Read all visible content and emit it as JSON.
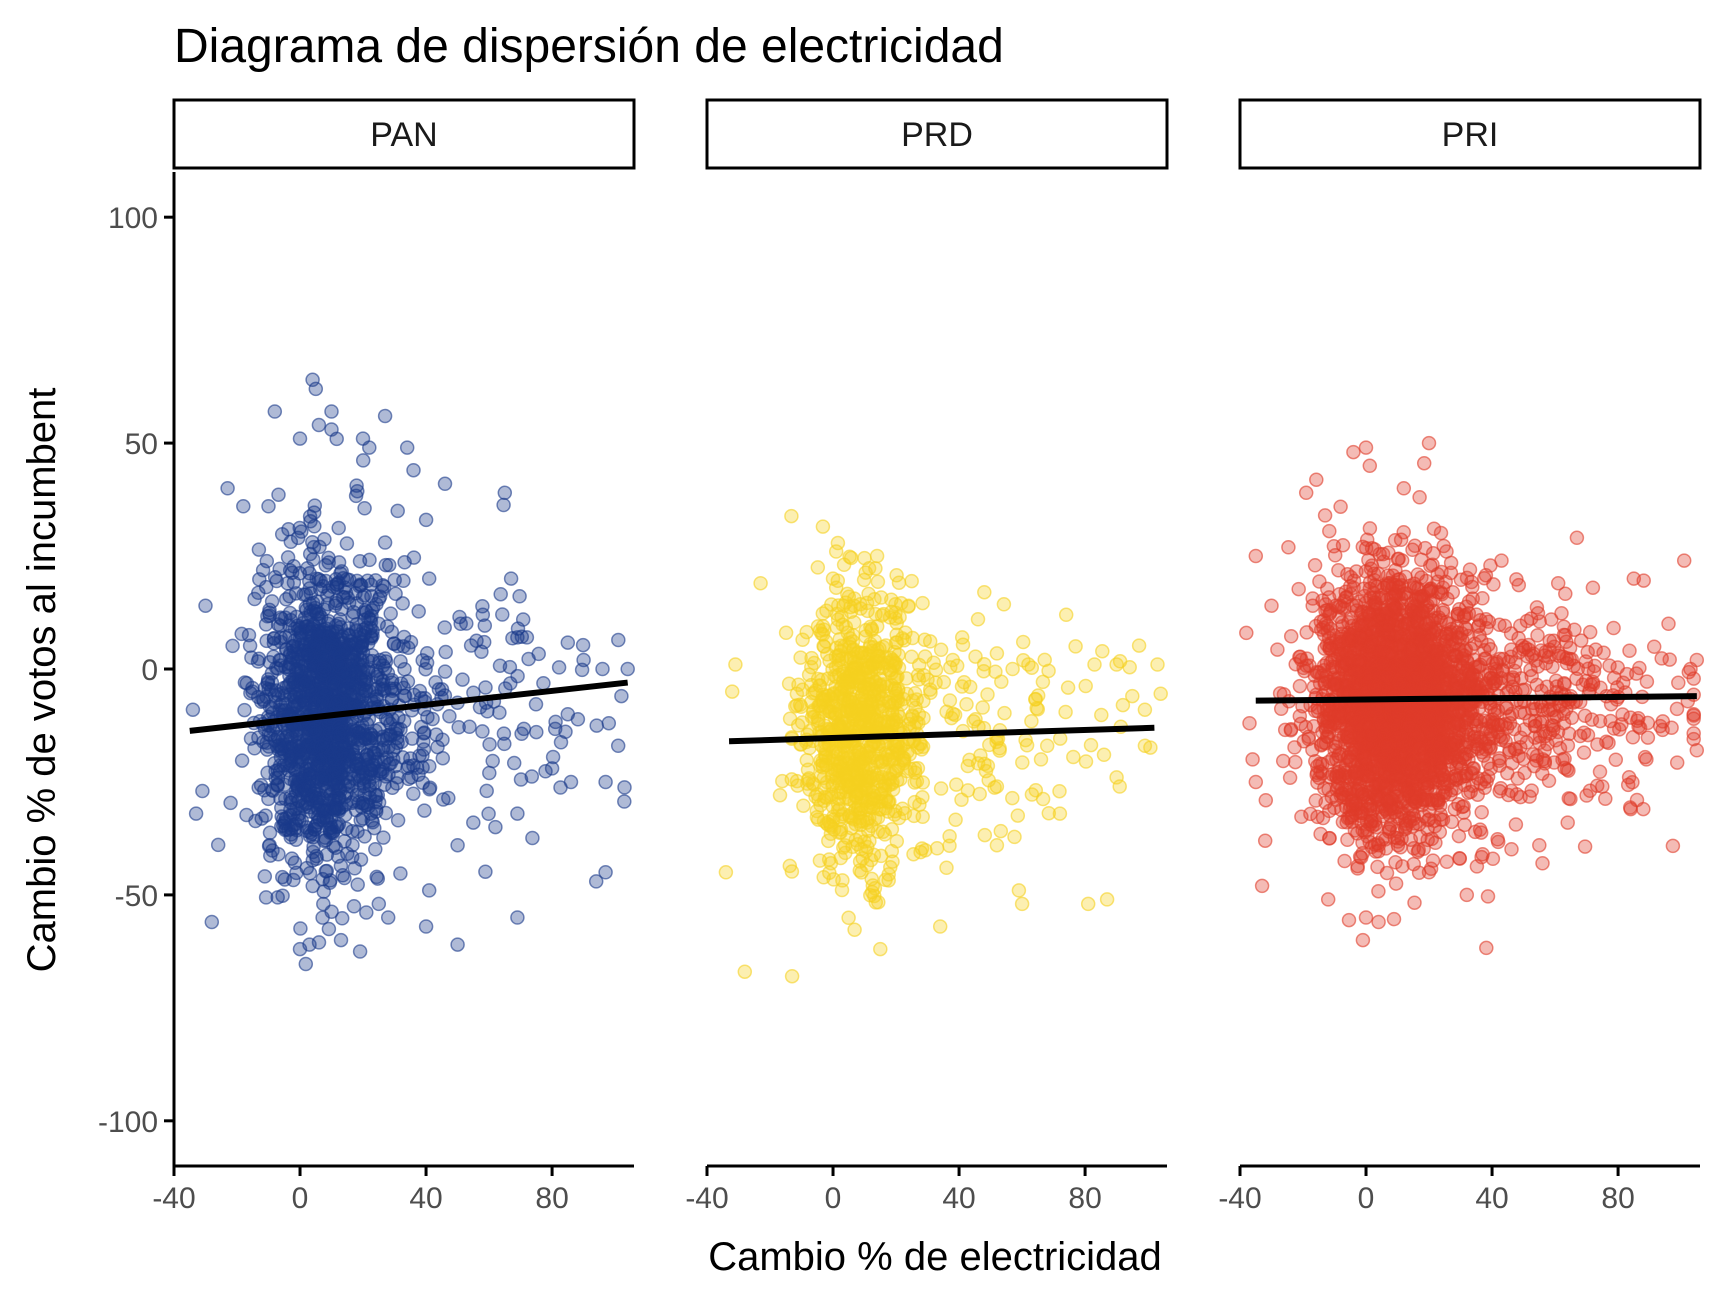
{
  "chart_data": {
    "type": "scatter",
    "title": "Diagrama de dispersión de electricidad",
    "xlabel": "Cambio % de electricidad",
    "ylabel": "Cambio % de votos al incumbent",
    "xlim": [
      -40,
      106
    ],
    "ylim": [
      -110,
      110
    ],
    "x_ticks": [
      -40,
      0,
      40,
      80
    ],
    "y_ticks": [
      100,
      50,
      0,
      -50,
      -100
    ],
    "grid": false,
    "facets": [
      {
        "label": "PAN",
        "color": "#1a3a8a",
        "point_count": 1600,
        "center": {
          "x": 8,
          "y": -10
        },
        "trend": {
          "x": [
            -35,
            104
          ],
          "y": [
            -13.7,
            -3
          ]
        },
        "sample_points": [
          {
            "x": 4,
            "y": 64
          },
          {
            "x": 5,
            "y": 62
          },
          {
            "x": -8,
            "y": 57
          },
          {
            "x": 27,
            "y": 56
          },
          {
            "x": 10,
            "y": 57
          },
          {
            "x": 6,
            "y": 54
          },
          {
            "x": 10,
            "y": 53
          },
          {
            "x": 0,
            "y": 51
          },
          {
            "x": 20,
            "y": 51
          },
          {
            "x": 34,
            "y": 49
          },
          {
            "x": 22,
            "y": 49
          },
          {
            "x": 36,
            "y": 44
          },
          {
            "x": 46,
            "y": 41
          },
          {
            "x": 65,
            "y": 39
          },
          {
            "x": -23,
            "y": 40
          },
          {
            "x": -18,
            "y": 36
          },
          {
            "x": -10,
            "y": 36
          },
          {
            "x": 31,
            "y": 35
          },
          {
            "x": 40,
            "y": 33
          },
          {
            "x": 27,
            "y": 28
          },
          {
            "x": 67,
            "y": 20
          },
          {
            "x": 41,
            "y": 20
          },
          {
            "x": -30,
            "y": 14
          },
          {
            "x": 58,
            "y": 12
          },
          {
            "x": 51,
            "y": 10
          },
          {
            "x": 69,
            "y": 7
          },
          {
            "x": 72,
            "y": 7
          },
          {
            "x": 90,
            "y": 2
          },
          {
            "x": 96,
            "y": 0
          },
          {
            "x": 104,
            "y": 0
          },
          {
            "x": 102,
            "y": -6
          },
          {
            "x": 85,
            "y": -10
          },
          {
            "x": 98,
            "y": -12
          },
          {
            "x": 101,
            "y": -17
          },
          {
            "x": 80,
            "y": -22
          },
          {
            "x": 86,
            "y": -25
          },
          {
            "x": 97,
            "y": -25
          },
          {
            "x": 62,
            "y": -35
          },
          {
            "x": 69,
            "y": -32
          },
          {
            "x": 55,
            "y": -34
          },
          {
            "x": 50,
            "y": -39
          },
          {
            "x": 41,
            "y": -49
          },
          {
            "x": 40,
            "y": -57
          },
          {
            "x": 69,
            "y": -55
          },
          {
            "x": 94,
            "y": -47
          },
          {
            "x": 97,
            "y": -45
          },
          {
            "x": 50,
            "y": -61
          },
          {
            "x": -28,
            "y": -56
          },
          {
            "x": -33,
            "y": -32
          },
          {
            "x": -34,
            "y": -9
          },
          {
            "x": -31,
            "y": -27
          },
          {
            "x": 3,
            "y": -61
          },
          {
            "x": 0,
            "y": -62
          },
          {
            "x": 13,
            "y": -60
          },
          {
            "x": 25,
            "y": -52
          },
          {
            "x": 28,
            "y": -55
          }
        ]
      },
      {
        "label": "PRD",
        "color": "#f5d020",
        "point_count": 1000,
        "center": {
          "x": 8,
          "y": -14
        },
        "trend": {
          "x": [
            -33,
            102
          ],
          "y": [
            -16,
            -13
          ]
        },
        "sample_points": [
          {
            "x": 1,
            "y": 26
          },
          {
            "x": 14,
            "y": 25
          },
          {
            "x": 0,
            "y": 20
          },
          {
            "x": 1,
            "y": 18
          },
          {
            "x": -23,
            "y": 19
          },
          {
            "x": 5,
            "y": 16
          },
          {
            "x": 24,
            "y": 14
          },
          {
            "x": 48,
            "y": 17
          },
          {
            "x": 46,
            "y": 11
          },
          {
            "x": 74,
            "y": 12
          },
          {
            "x": 41,
            "y": 7
          },
          {
            "x": 77,
            "y": 5
          },
          {
            "x": 38,
            "y": 2
          },
          {
            "x": 83,
            "y": 1
          },
          {
            "x": 90,
            "y": 1
          },
          {
            "x": 103,
            "y": 1
          },
          {
            "x": 57,
            "y": 0
          },
          {
            "x": 62,
            "y": 1
          },
          {
            "x": 95,
            "y": -6
          },
          {
            "x": 99,
            "y": -9
          },
          {
            "x": 92,
            "y": -8
          },
          {
            "x": 90,
            "y": -24
          },
          {
            "x": 91,
            "y": -26
          },
          {
            "x": 99,
            "y": -17
          },
          {
            "x": 86,
            "y": -19
          },
          {
            "x": 66,
            "y": -20
          },
          {
            "x": 72,
            "y": -32
          },
          {
            "x": 52,
            "y": -39
          },
          {
            "x": 59,
            "y": -49
          },
          {
            "x": 60,
            "y": -52
          },
          {
            "x": 81,
            "y": -52
          },
          {
            "x": 87,
            "y": -51
          },
          {
            "x": 34,
            "y": -57
          },
          {
            "x": 15,
            "y": -62
          },
          {
            "x": -28,
            "y": -67
          },
          {
            "x": -13,
            "y": -68
          },
          {
            "x": -34,
            "y": -45
          },
          {
            "x": -32,
            "y": -5
          },
          {
            "x": -31,
            "y": 1
          },
          {
            "x": 36,
            "y": -44
          },
          {
            "x": 37,
            "y": -37
          },
          {
            "x": 52,
            "y": -26
          }
        ]
      },
      {
        "label": "PRI",
        "color": "#e03c2a",
        "point_count": 3000,
        "center": {
          "x": 8,
          "y": -8
        },
        "trend": {
          "x": [
            -35,
            105
          ],
          "y": [
            -7,
            -6
          ]
        },
        "sample_points": [
          {
            "x": 0,
            "y": 49
          },
          {
            "x": -4,
            "y": 48
          },
          {
            "x": 20,
            "y": 50
          },
          {
            "x": 12,
            "y": 40
          },
          {
            "x": 17,
            "y": 38
          },
          {
            "x": -19,
            "y": 39
          },
          {
            "x": -13,
            "y": 34
          },
          {
            "x": 33,
            "y": 22
          },
          {
            "x": 43,
            "y": 24
          },
          {
            "x": 101,
            "y": 24
          },
          {
            "x": 85,
            "y": 20
          },
          {
            "x": 72,
            "y": 18
          },
          {
            "x": 61,
            "y": 19
          },
          {
            "x": -35,
            "y": 25
          },
          {
            "x": -30,
            "y": 14
          },
          {
            "x": -38,
            "y": 8
          },
          {
            "x": 96,
            "y": 10
          },
          {
            "x": 103,
            "y": 0
          },
          {
            "x": 105,
            "y": 2
          },
          {
            "x": 104,
            "y": -11
          },
          {
            "x": 105,
            "y": -18
          },
          {
            "x": 97,
            "y": -13
          },
          {
            "x": 87,
            "y": -13
          },
          {
            "x": 89,
            "y": -20
          },
          {
            "x": 86,
            "y": -29
          },
          {
            "x": 84,
            "y": -31
          },
          {
            "x": 88,
            "y": -31
          },
          {
            "x": 70,
            "y": -28
          },
          {
            "x": 75,
            "y": -26
          },
          {
            "x": 64,
            "y": -34
          },
          {
            "x": 55,
            "y": -39
          },
          {
            "x": 56,
            "y": -43
          },
          {
            "x": 37,
            "y": -41
          },
          {
            "x": 32,
            "y": -50
          },
          {
            "x": 20,
            "y": -45
          },
          {
            "x": -32,
            "y": -38
          },
          {
            "x": -33,
            "y": -48
          },
          {
            "x": -12,
            "y": -51
          },
          {
            "x": -1,
            "y": -60
          },
          {
            "x": 0,
            "y": -55
          },
          {
            "x": 4,
            "y": -56
          },
          {
            "x": -36,
            "y": -20
          },
          {
            "x": -37,
            "y": -12
          },
          {
            "x": -35,
            "y": -25
          }
        ]
      }
    ]
  }
}
